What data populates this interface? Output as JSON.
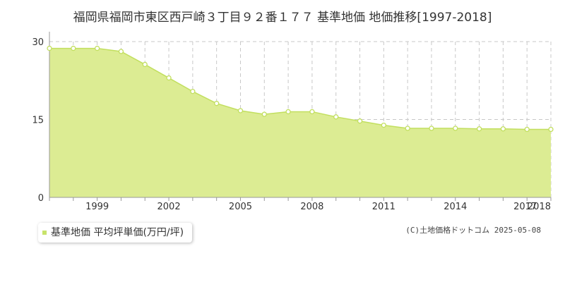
{
  "header": {
    "title": "福岡県福岡市東区西戸崎３丁目９２番１７７ 基準地価 地価推移[1997-2018]"
  },
  "legend": {
    "label": "基準地価 平均坪単価(万円/坪)"
  },
  "credit": "(C)土地価格ドットコム 2025-05-08",
  "colors": {
    "fill": "#dcec93",
    "line": "#c2df5f",
    "point_stroke": "#c2df5f",
    "point_fill": "#ffffff",
    "grid": "#c8c8c8",
    "axis": "#999999"
  },
  "chart_data": {
    "type": "area",
    "x": [
      1997,
      1998,
      1999,
      2000,
      2001,
      2002,
      2003,
      2004,
      2005,
      2006,
      2007,
      2008,
      2009,
      2010,
      2011,
      2012,
      2013,
      2014,
      2015,
      2016,
      2017,
      2018
    ],
    "series": [
      {
        "name": "基準地価 平均坪単価(万円/坪)",
        "values": [
          28.7,
          28.7,
          28.7,
          28.1,
          25.6,
          23.0,
          20.4,
          18.1,
          16.7,
          16.0,
          16.5,
          16.5,
          15.5,
          14.7,
          13.9,
          13.3,
          13.3,
          13.3,
          13.2,
          13.2,
          13.1,
          13.1
        ]
      }
    ],
    "yticks": [
      0,
      15,
      30
    ],
    "ytick_labels": [
      "0",
      "15",
      "30"
    ],
    "xticks": [
      1999,
      2002,
      2005,
      2008,
      2011,
      2014,
      2017,
      2018
    ],
    "xtick_labels": [
      "1999",
      "2002",
      "2005",
      "2008",
      "2011",
      "2014",
      "2017",
      "2018"
    ],
    "xlim": [
      1997,
      2018
    ],
    "ylim": [
      0,
      30
    ],
    "grid": true,
    "legend_position": "bottom-left"
  }
}
